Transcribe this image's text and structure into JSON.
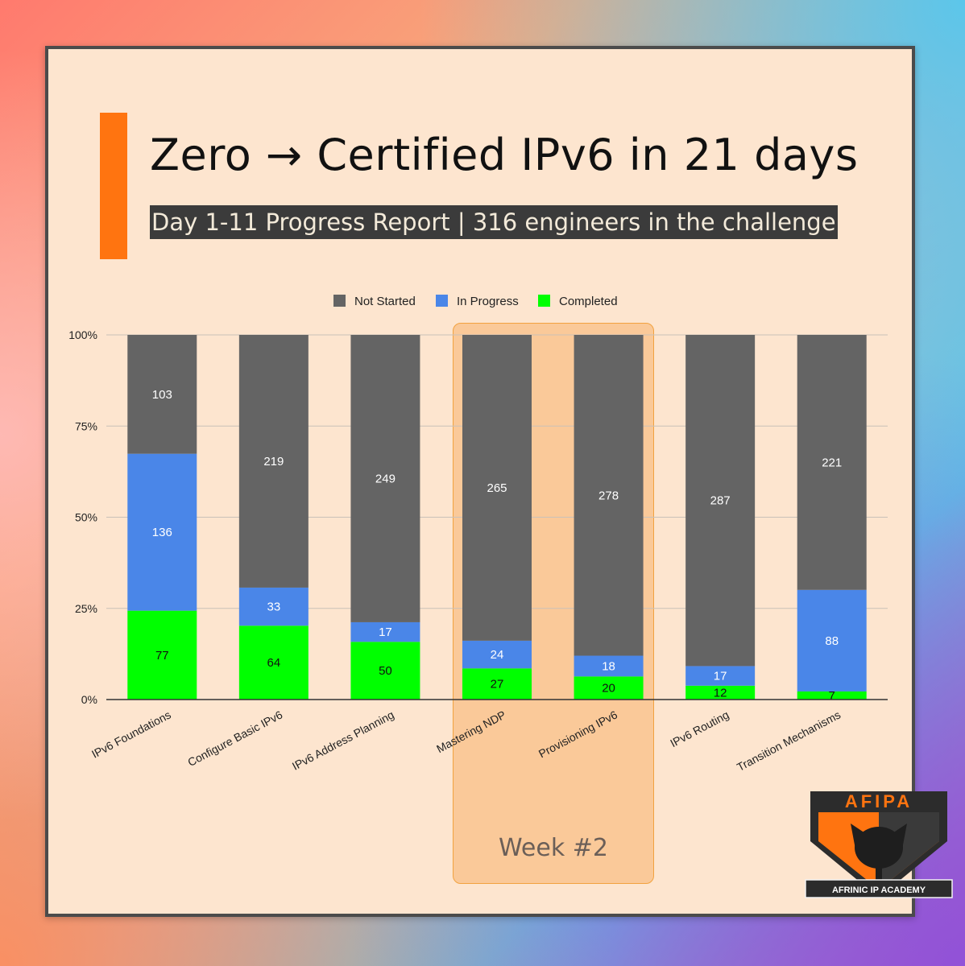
{
  "header": {
    "title": "Zero → Certified IPv6 in 21 days",
    "subtitle": "Day 1-11 Progress Report | 316 engineers in the challenge"
  },
  "highlight": {
    "label": "Week #2"
  },
  "logo": {
    "text": "AFRINIC IP ACADEMY",
    "mark": "AFIPA"
  },
  "colors": {
    "accent": "#ff7410",
    "not_started": "#646464",
    "in_progress": "#4a86e8",
    "completed": "#00ff00"
  },
  "chart_data": {
    "type": "bar",
    "stacked": true,
    "normalized": true,
    "categories": [
      "IPv6 Foundations",
      "Configure Basic IPv6",
      "IPv6 Address Planning",
      "Mastering NDP",
      "Provisioning IPv6",
      "IPv6 Routing",
      "Transition Mechanisms"
    ],
    "series": [
      {
        "name": "Completed",
        "values": [
          77,
          64,
          50,
          27,
          20,
          12,
          7
        ]
      },
      {
        "name": "In Progress",
        "values": [
          136,
          33,
          17,
          24,
          18,
          17,
          88
        ]
      },
      {
        "name": "Not Started",
        "values": [
          103,
          219,
          249,
          265,
          278,
          287,
          221
        ]
      }
    ],
    "legend": [
      "Not Started",
      "In Progress",
      "Completed"
    ],
    "y_ticks": [
      "0%",
      "25%",
      "50%",
      "75%",
      "100%"
    ],
    "ylim": [
      0,
      100
    ],
    "grid": true,
    "legend_position": "top-center"
  }
}
